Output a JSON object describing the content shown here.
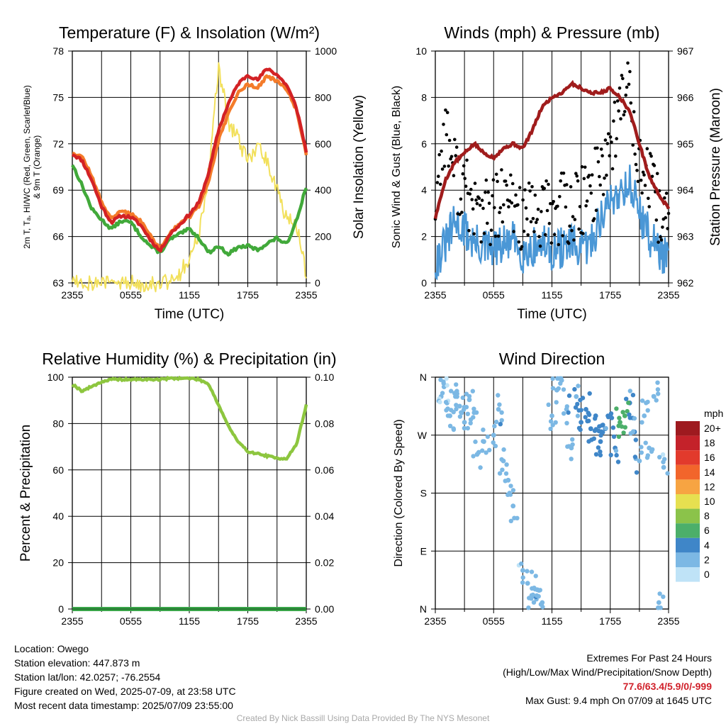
{
  "panels": {
    "temp": {
      "title": "Temperature (F) & Insolation (W/m²)",
      "xlabel": "Time (UTC)",
      "ylabel_left": [
        "2m T, Tₐ, HI/WC (Red, Green, Scarlet/Blue)",
        "& 9m T (Orange)"
      ],
      "ylabel_right": "Solar Insolation (Yellow)",
      "xticks": [
        "2355",
        "0555",
        "1155",
        "1755",
        "2355"
      ],
      "yticks_left": [
        "63",
        "66",
        "69",
        "72",
        "75",
        "78"
      ],
      "yticks_right": [
        "0",
        "200",
        "400",
        "600",
        "800",
        "1000"
      ]
    },
    "wind": {
      "title": "Winds (mph) & Pressure (mb)",
      "xlabel": "Time (UTC)",
      "ylabel_left": "Sonic Wind & Gust (Blue, Black)",
      "ylabel_right": "Station Pressure (Maroon)",
      "xticks": [
        "2355",
        "0555",
        "1155",
        "1755",
        "2355"
      ],
      "yticks_left": [
        "0",
        "2",
        "4",
        "6",
        "8",
        "10"
      ],
      "yticks_right": [
        "962",
        "963",
        "964",
        "965",
        "966",
        "967"
      ]
    },
    "rh": {
      "title": "Relative Humidity (%) & Precipitation (in)",
      "ylabel_left": "Percent & Precipitation",
      "xticks": [
        "2355",
        "0555",
        "1155",
        "1755",
        "2355"
      ],
      "yticks_left": [
        "0",
        "20",
        "40",
        "60",
        "80",
        "100"
      ],
      "yticks_right": [
        "0.00",
        "0.02",
        "0.04",
        "0.06",
        "0.08",
        "0.10"
      ]
    },
    "dir": {
      "title": "Wind Direction",
      "ylabel_left": "Direction (Colored By Speed)",
      "xticks": [
        "2355",
        "0555",
        "1155",
        "1755",
        "2355"
      ],
      "yticks_left": [
        "N",
        "E",
        "S",
        "W",
        "N"
      ],
      "legend_unit": "mph",
      "legend_labels": [
        "20+",
        "18",
        "16",
        "14",
        "12",
        "10",
        "8",
        "6",
        "4",
        "2",
        "0"
      ],
      "legend_colors": [
        "#9e1a1f",
        "#c4222a",
        "#e23a2c",
        "#f2652b",
        "#f7a442",
        "#e6e050",
        "#8bc34a",
        "#4caf6a",
        "#3f86c8",
        "#7cb8e4",
        "#bfe3f7"
      ]
    }
  },
  "colors": {
    "temp_2m": "#d32225",
    "temp_9m": "#f47b2a",
    "dewpoint": "#41a93a",
    "insolation": "#f2e05c",
    "wind": "#4a97d6",
    "gust": "#000000",
    "pressure": "#a01c1c",
    "rh": "#8dc63f",
    "precip": "#3aa64a"
  },
  "info": {
    "location": "Location: Owego",
    "elevation": "Station elevation: 447.873 m",
    "latlon": "Station lat/lon: 42.0257; -76.2554",
    "created": "Figure created on Wed, 2025-07-09, at 23:58 UTC",
    "recent": "Most recent data timestamp: 2025/07/09 23:55:00",
    "extremes_title": "Extremes For Past 24 Hours",
    "extremes_sub": "(High/Low/Max Wind/Precipitation/Snow Depth)",
    "extremes_values": "77.6/63.4/5.9/0/-999",
    "max_gust": "Max Gust: 9.4 mph On 07/09 at 1645 UTC",
    "credit": "Created By Nick Bassill Using Data Provided By The NYS Mesonet"
  },
  "chart_data": [
    {
      "type": "line",
      "x": [
        0,
        1,
        2,
        3,
        4,
        5,
        6,
        7,
        8,
        9,
        10,
        11,
        12,
        13,
        14,
        15,
        16,
        17,
        18,
        19,
        20,
        21,
        22,
        23,
        24
      ],
      "series": [
        {
          "values": [
            71.0,
            70.5,
            69.0,
            67.0,
            65.8,
            66.3,
            66.2,
            65.6,
            64.5,
            63.6,
            64.9,
            65.6,
            66.4,
            67.3,
            69.6,
            72.8,
            74.8,
            76.3,
            77.0,
            76.6,
            77.5,
            77.0,
            76.2,
            74.5,
            71.2
          ]
        },
        {
          "values": [
            71.1,
            70.8,
            69.3,
            67.3,
            66.1,
            66.6,
            66.5,
            65.9,
            64.8,
            63.8,
            65.0,
            65.7,
            66.2,
            67.0,
            69.0,
            72.0,
            74.0,
            75.6,
            76.3,
            76.0,
            76.9,
            76.5,
            75.9,
            74.3,
            71.0
          ]
        },
        {
          "values": [
            70.2,
            68.6,
            66.8,
            66.0,
            65.3,
            65.9,
            65.8,
            64.8,
            64.0,
            63.5,
            64.5,
            64.9,
            65.3,
            64.6,
            63.5,
            64.0,
            63.4,
            63.9,
            64.0,
            63.7,
            64.2,
            64.6,
            64.1,
            66.0,
            68.5
          ]
        },
        {
          "values": [
            25,
            5,
            2,
            1,
            0,
            0,
            0,
            0,
            0,
            0,
            8,
            45,
            110,
            210,
            500,
            980,
            730,
            650,
            550,
            620,
            560,
            420,
            290,
            260,
            40
          ]
        }
      ]
    },
    {
      "type": "line",
      "x": [
        0,
        1,
        2,
        3,
        4,
        5,
        6,
        7,
        8,
        9,
        10,
        11,
        12,
        13,
        14,
        15,
        16,
        17,
        18,
        19,
        20,
        21,
        22,
        23,
        24
      ],
      "series": [
        {
          "values": [
            0.9,
            1.6,
            2.6,
            2.3,
            1.7,
            1.5,
            1.4,
            1.6,
            1.8,
            1.3,
            1.5,
            1.7,
            1.4,
            1.5,
            1.6,
            1.4,
            1.7,
            2.8,
            3.5,
            4.0,
            4.3,
            3.1,
            2.0,
            1.5,
            0.9
          ]
        },
        {
          "values": [
            3.5,
            6.8,
            4.8,
            4.0,
            3.2,
            3.0,
            3.0,
            3.5,
            3.4,
            2.8,
            2.7,
            3.0,
            2.9,
            3.3,
            3.0,
            3.5,
            3.8,
            5.0,
            6.0,
            7.5,
            8.6,
            5.0,
            4.2,
            3.0,
            2.5
          ]
        },
        {
          "values": [
            963.4,
            964.2,
            964.6,
            964.8,
            965.0,
            964.8,
            964.7,
            964.9,
            965.0,
            964.9,
            965.3,
            965.8,
            966.0,
            966.1,
            966.3,
            966.2,
            966.1,
            966.1,
            966.2,
            966.0,
            965.7,
            965.0,
            964.3,
            963.9,
            963.6
          ]
        }
      ]
    },
    {
      "type": "line",
      "x": [
        0,
        1,
        2,
        3,
        4,
        5,
        6,
        7,
        8,
        9,
        10,
        11,
        12,
        13,
        14,
        15,
        16,
        17,
        18,
        19,
        20,
        21,
        22,
        23,
        24
      ],
      "series": [
        {
          "values": [
            97,
            94,
            96,
            98,
            99,
            99,
            99,
            99,
            99,
            99,
            99.5,
            99.5,
            99.5,
            99,
            97,
            88,
            79,
            72,
            68,
            67,
            66,
            65,
            65,
            71,
            88
          ]
        },
        {
          "values": [
            0,
            0,
            0,
            0,
            0,
            0,
            0,
            0,
            0,
            0,
            0,
            0,
            0,
            0,
            0,
            0,
            0,
            0,
            0,
            0,
            0,
            0,
            0,
            0,
            0
          ]
        }
      ]
    },
    {
      "type": "scatter",
      "yticks": [
        "N",
        "E",
        "S",
        "W",
        "N"
      ],
      "points": [
        [
          0.6,
          330,
          1.5
        ],
        [
          0.9,
          345,
          1.2
        ],
        [
          1.2,
          320,
          1.8
        ],
        [
          1.5,
          300,
          2.0
        ],
        [
          2.0,
          335,
          1.6
        ],
        [
          2.5,
          315,
          2.2
        ],
        [
          3.0,
          290,
          2.5
        ],
        [
          3.5,
          325,
          1.8
        ],
        [
          4.0,
          305,
          2.4
        ],
        [
          4.3,
          240,
          1.5
        ],
        [
          5.0,
          260,
          1.8
        ],
        [
          6.0,
          270,
          2.0
        ],
        [
          6.5,
          310,
          2.6
        ],
        [
          7.0,
          230,
          1.6
        ],
        [
          7.5,
          200,
          1.8
        ],
        [
          8.0,
          160,
          2.0
        ],
        [
          9.0,
          60,
          1.5
        ],
        [
          9.5,
          40,
          2.2
        ],
        [
          10.0,
          20,
          2.6
        ],
        [
          10.5,
          30,
          2.4
        ],
        [
          11.0,
          10,
          1.8
        ],
        [
          12.0,
          300,
          1.6
        ],
        [
          12.5,
          340,
          1.8
        ],
        [
          13.0,
          355,
          2.4
        ],
        [
          13.5,
          310,
          2.6
        ],
        [
          14.0,
          250,
          2.0
        ],
        [
          14.5,
          330,
          2.8
        ],
        [
          15.0,
          290,
          3.2
        ],
        [
          15.5,
          310,
          3.6
        ],
        [
          16.0,
          280,
          3.8
        ],
        [
          16.5,
          300,
          4.0
        ],
        [
          17.0,
          260,
          3.4
        ],
        [
          17.5,
          280,
          4.5
        ],
        [
          18.0,
          300,
          3.0
        ],
        [
          18.5,
          250,
          3.4
        ],
        [
          19.0,
          290,
          5.8
        ],
        [
          19.5,
          300,
          5.2
        ],
        [
          20.0,
          320,
          3.0
        ],
        [
          20.5,
          275,
          3.2
        ],
        [
          21.0,
          230,
          2.6
        ],
        [
          21.5,
          300,
          2.0
        ],
        [
          22.0,
          250,
          1.8
        ],
        [
          22.5,
          330,
          2.2
        ],
        [
          23.0,
          10,
          1.6
        ],
        [
          23.5,
          220,
          1.4
        ]
      ]
    }
  ]
}
